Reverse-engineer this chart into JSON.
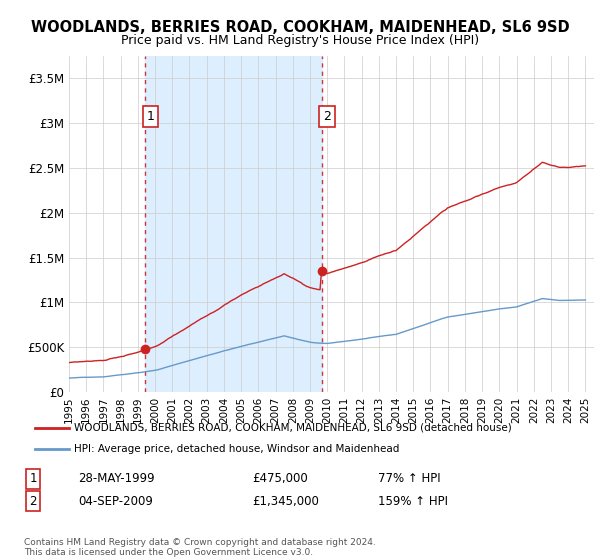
{
  "title": "WOODLANDS, BERRIES ROAD, COOKHAM, MAIDENHEAD, SL6 9SD",
  "subtitle": "Price paid vs. HM Land Registry's House Price Index (HPI)",
  "legend_line1": "WOODLANDS, BERRIES ROAD, COOKHAM, MAIDENHEAD, SL6 9SD (detached house)",
  "legend_line2": "HPI: Average price, detached house, Windsor and Maidenhead",
  "annotation1_date": "28-MAY-1999",
  "annotation1_price": "£475,000",
  "annotation1_hpi": "77% ↑ HPI",
  "annotation2_date": "04-SEP-2009",
  "annotation2_price": "£1,345,000",
  "annotation2_hpi": "159% ↑ HPI",
  "footer": "Contains HM Land Registry data © Crown copyright and database right 2024.\nThis data is licensed under the Open Government Licence v3.0.",
  "hpi_color": "#6699cc",
  "sale_color": "#cc2222",
  "vline_color": "#cc2222",
  "shade_color": "#ddeeff",
  "ylim_max": 3750000,
  "xlim_min": 1995,
  "xlim_max": 2025.5,
  "sale1_x": 1999.4,
  "sale1_y": 475000,
  "sale2_x": 2009.67,
  "sale2_y": 1345000,
  "yticks": [
    0,
    500000,
    1000000,
    1500000,
    2000000,
    2500000,
    3000000,
    3500000
  ],
  "ytick_labels": [
    "£0",
    "£500K",
    "£1M",
    "£1.5M",
    "£2M",
    "£2.5M",
    "£3M",
    "£3.5M"
  ]
}
